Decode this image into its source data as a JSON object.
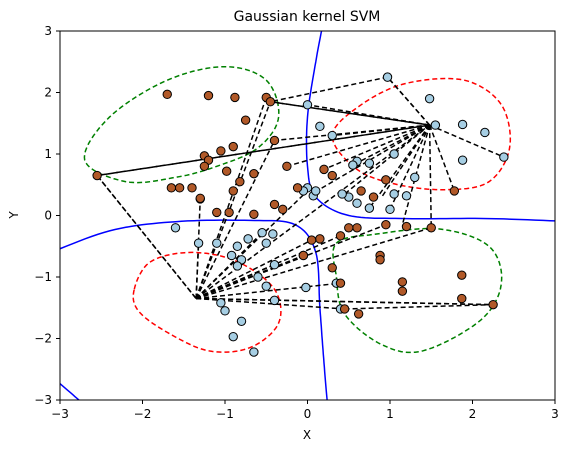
{
  "chart_data": {
    "type": "scatter",
    "title": "Gaussian kernel SVM",
    "xlabel": "X",
    "ylabel": "Y",
    "xlim": [
      -3,
      3
    ],
    "ylim": [
      -3,
      3
    ],
    "xticks": [
      -3,
      -2,
      -1,
      0,
      1,
      2,
      3
    ],
    "yticks": [
      -3,
      -2,
      -1,
      0,
      1,
      2,
      3
    ],
    "grid": false,
    "colors": {
      "class_a": "#a6cee3",
      "class_b": "#b15928",
      "decision_boundary": "#0000ff",
      "margin_red": "#ff0000",
      "margin_green": "#008000",
      "support_lines": "#000000"
    },
    "points_class_a": [
      [
        0.97,
        2.25
      ],
      [
        1.48,
        1.9
      ],
      [
        1.55,
        1.47
      ],
      [
        1.88,
        1.48
      ],
      [
        2.15,
        1.35
      ],
      [
        2.38,
        0.95
      ],
      [
        1.88,
        0.9
      ],
      [
        0.15,
        1.45
      ],
      [
        0.3,
        1.3
      ],
      [
        0.6,
        0.88
      ],
      [
        0.75,
        0.85
      ],
      [
        1.05,
        1.0
      ],
      [
        1.3,
        0.62
      ],
      [
        0.5,
        0.3
      ],
      [
        0.6,
        0.2
      ],
      [
        0.42,
        0.35
      ],
      [
        1.0,
        0.1
      ],
      [
        0.75,
        0.12
      ],
      [
        1.05,
        0.35
      ],
      [
        1.2,
        0.32
      ],
      [
        0.0,
        1.8
      ],
      [
        0.0,
        0.45
      ],
      [
        0.07,
        0.32
      ],
      [
        0.1,
        0.4
      ],
      [
        -1.3,
        0.27
      ],
      [
        -1.32,
        -0.45
      ],
      [
        -1.1,
        -0.45
      ],
      [
        -1.6,
        -0.2
      ],
      [
        -0.55,
        -0.28
      ],
      [
        -0.42,
        -0.3
      ],
      [
        -0.5,
        -0.45
      ],
      [
        -0.72,
        -0.38
      ],
      [
        -0.85,
        -0.5
      ],
      [
        -0.92,
        -0.65
      ],
      [
        -0.8,
        -0.72
      ],
      [
        -0.85,
        -0.82
      ],
      [
        -0.6,
        -1.0
      ],
      [
        -0.4,
        -0.8
      ],
      [
        -0.5,
        -1.15
      ],
      [
        -0.4,
        -1.38
      ],
      [
        -0.05,
        -0.65
      ],
      [
        -0.02,
        -1.17
      ],
      [
        -1.05,
        -1.42
      ],
      [
        -1.0,
        -1.55
      ],
      [
        -0.8,
        -1.72
      ],
      [
        -0.9,
        -1.97
      ],
      [
        -0.65,
        -2.22
      ],
      [
        0.35,
        -1.1
      ],
      [
        0.4,
        -1.52
      ],
      [
        -0.05,
        0.4
      ],
      [
        0.55,
        0.82
      ]
    ],
    "points_class_b": [
      [
        -1.7,
        1.97
      ],
      [
        -1.2,
        1.95
      ],
      [
        -0.88,
        1.92
      ],
      [
        -0.5,
        1.92
      ],
      [
        -0.45,
        1.85
      ],
      [
        -0.75,
        1.55
      ],
      [
        -0.4,
        1.22
      ],
      [
        -1.25,
        0.97
      ],
      [
        -1.2,
        0.9
      ],
      [
        -1.25,
        0.8
      ],
      [
        -1.05,
        1.05
      ],
      [
        -0.9,
        1.12
      ],
      [
        -1.4,
        0.45
      ],
      [
        -1.55,
        0.45
      ],
      [
        -1.65,
        0.45
      ],
      [
        -2.55,
        0.65
      ],
      [
        -0.98,
        0.72
      ],
      [
        -0.82,
        0.55
      ],
      [
        -0.65,
        0.68
      ],
      [
        -0.9,
        0.4
      ],
      [
        -1.1,
        0.05
      ],
      [
        -0.95,
        0.05
      ],
      [
        -0.65,
        0.02
      ],
      [
        -1.3,
        0.28
      ],
      [
        -0.4,
        0.18
      ],
      [
        -0.3,
        0.1
      ],
      [
        -0.12,
        0.45
      ],
      [
        -0.25,
        0.8
      ],
      [
        0.3,
        0.65
      ],
      [
        0.95,
        0.58
      ],
      [
        0.65,
        0.4
      ],
      [
        0.8,
        0.3
      ],
      [
        0.2,
        0.75
      ],
      [
        1.5,
        -0.2
      ],
      [
        1.2,
        -0.18
      ],
      [
        0.95,
        -0.15
      ],
      [
        0.6,
        -0.2
      ],
      [
        0.4,
        -0.33
      ],
      [
        0.15,
        -0.38
      ],
      [
        0.05,
        -0.4
      ],
      [
        0.3,
        -0.85
      ],
      [
        0.4,
        -1.1
      ],
      [
        0.88,
        -0.65
      ],
      [
        0.88,
        -0.72
      ],
      [
        1.15,
        -1.08
      ],
      [
        1.15,
        -1.23
      ],
      [
        1.87,
        -0.97
      ],
      [
        1.87,
        -1.35
      ],
      [
        2.25,
        -1.45
      ],
      [
        0.45,
        -1.52
      ],
      [
        0.62,
        -1.6
      ],
      [
        -0.05,
        -0.65
      ],
      [
        1.78,
        0.4
      ],
      [
        0.5,
        -0.2
      ]
    ],
    "support_vectors_hub_a": [
      1.48,
      1.47
    ],
    "support_vectors_hub_b": [
      -1.35,
      -1.35
    ],
    "support_targets_a": [
      [
        0.97,
        2.25
      ],
      [
        0.0,
        1.8
      ],
      [
        -0.45,
        1.85
      ],
      [
        0.3,
        1.3
      ],
      [
        -0.4,
        1.22
      ],
      [
        -2.55,
        0.65
      ],
      [
        -0.25,
        0.8
      ],
      [
        0.05,
        0.35
      ],
      [
        0.45,
        0.35
      ],
      [
        0.75,
        0.12
      ],
      [
        1.0,
        0.1
      ],
      [
        1.15,
        -0.15
      ],
      [
        1.5,
        -0.2
      ],
      [
        1.78,
        0.4
      ],
      [
        2.38,
        0.95
      ],
      [
        0.9,
        0.3
      ],
      [
        0.2,
        0.75
      ],
      [
        0.55,
        0.82
      ]
    ],
    "support_targets_b": [
      [
        -1.3,
        0.27
      ],
      [
        -1.32,
        -0.45
      ],
      [
        -0.5,
        1.92
      ],
      [
        -0.45,
        1.85
      ],
      [
        -0.4,
        1.22
      ],
      [
        -2.55,
        0.65
      ],
      [
        0.0,
        0.4
      ],
      [
        0.05,
        -0.4
      ],
      [
        0.4,
        -0.33
      ],
      [
        0.95,
        -0.15
      ],
      [
        1.5,
        -0.2
      ],
      [
        2.25,
        -1.45
      ],
      [
        0.4,
        -1.1
      ],
      [
        0.45,
        -1.52
      ],
      [
        -0.05,
        -0.65
      ],
      [
        -0.55,
        -0.28
      ],
      [
        -0.4,
        -0.8
      ],
      [
        1.48,
        1.47
      ]
    ]
  }
}
